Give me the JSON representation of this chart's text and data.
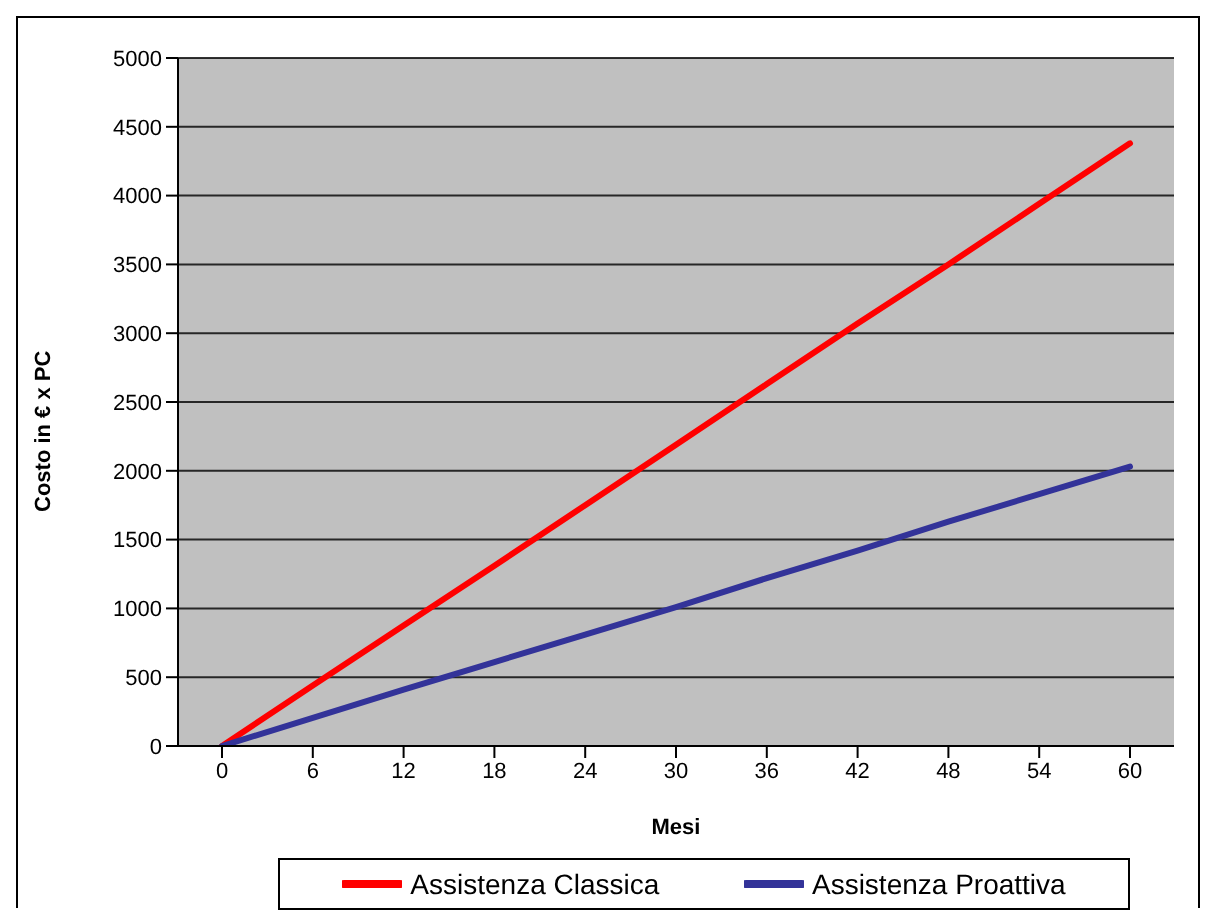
{
  "chart_data": {
    "type": "line",
    "xlabel": "Mesi",
    "ylabel": "Costo in € x PC",
    "categories": [
      "0",
      "6",
      "12",
      "18",
      "24",
      "30",
      "36",
      "42",
      "48",
      "54",
      "60"
    ],
    "series": [
      {
        "name": "Assistenza Classica",
        "color": "#ff0000",
        "values": [
          0,
          440,
          875,
          1310,
          1750,
          2190,
          2630,
          3070,
          3500,
          3940,
          4380
        ]
      },
      {
        "name": "Assistenza Proattiva",
        "color": "#333399",
        "values": [
          0,
          205,
          410,
          610,
          810,
          1010,
          1220,
          1420,
          1630,
          1830,
          2030
        ]
      }
    ],
    "ylim": [
      0,
      5000
    ],
    "yticks": [
      0,
      500,
      1000,
      1500,
      2000,
      2500,
      3000,
      3500,
      4000,
      4500,
      5000
    ],
    "grid": "y",
    "legend": "bottom",
    "marker": "none",
    "line_style": "solid"
  }
}
